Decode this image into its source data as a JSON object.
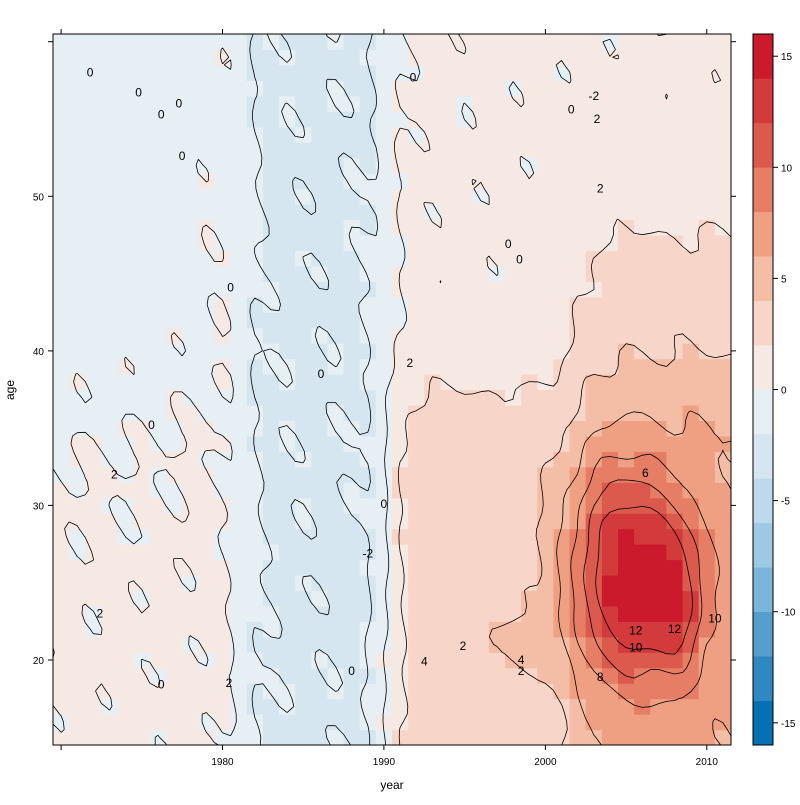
{
  "chart_data": {
    "type": "heatmap",
    "subtype": "levelplot-with-contours",
    "title": "",
    "xlabel": "year",
    "ylabel": "age",
    "xlim": [
      1969.5,
      2011.5
    ],
    "ylim": [
      14.5,
      60.5
    ],
    "x_ticks": [
      1980,
      1990,
      2000,
      2010
    ],
    "y_ticks": [
      20,
      30,
      40,
      50
    ],
    "x_tick_labels": [
      "1980",
      "1990",
      "2000",
      "2010"
    ],
    "y_tick_labels": [
      "20",
      "30",
      "40",
      "50"
    ],
    "colorkey": {
      "min": -16,
      "max": 16,
      "step": 2,
      "ticks": [
        -15,
        -10,
        -5,
        0,
        5,
        10,
        15
      ],
      "tick_labels": [
        "-15",
        "-10",
        "-5",
        "0",
        "5",
        "10",
        "15"
      ],
      "palette": {
        "-16": "#0571b0",
        "-14": "#2f88c0",
        "-12": "#559fce",
        "-10": "#7bb5da",
        "-8": "#9ec9e4",
        "-6": "#bdd9ec",
        "-4": "#d5e6f1",
        "-2": "#e6eff4",
        "0": "#f6e8e3",
        "2": "#f7d5c8",
        "4": "#f4bda6",
        "6": "#efa082",
        "8": "#e57e64",
        "10": "#dc5a4d",
        "12": "#d23a3c",
        "14": "#cb1a2c"
      }
    },
    "contour_labels": [
      {
        "text": "0",
        "x": 1971.8,
        "y": 58.0
      },
      {
        "text": "0",
        "x": 1974.8,
        "y": 56.7
      },
      {
        "text": "0",
        "x": 1976.2,
        "y": 55.3
      },
      {
        "text": "0",
        "x": 1977.3,
        "y": 56.0
      },
      {
        "text": "0",
        "x": 1977.5,
        "y": 52.6
      },
      {
        "text": "0",
        "x": 1980.5,
        "y": 44.1
      },
      {
        "text": "0",
        "x": 1975.6,
        "y": 35.2
      },
      {
        "text": "2",
        "x": 1973.3,
        "y": 32.0
      },
      {
        "text": "2",
        "x": 1972.4,
        "y": 23.0
      },
      {
        "text": "0",
        "x": 1976.2,
        "y": 18.4
      },
      {
        "text": "2",
        "x": 1980.4,
        "y": 18.5
      },
      {
        "text": "0",
        "x": 1986.1,
        "y": 38.5
      },
      {
        "text": "0",
        "x": 1988.0,
        "y": 19.3
      },
      {
        "text": "2",
        "x": 1991.6,
        "y": 39.2
      },
      {
        "text": "-2",
        "x": 1989.0,
        "y": 26.9
      },
      {
        "text": "0",
        "x": 1990.0,
        "y": 30.1
      },
      {
        "text": "0",
        "x": 1991.8,
        "y": 57.7
      },
      {
        "text": "0",
        "x": 1997.7,
        "y": 46.9
      },
      {
        "text": "0",
        "x": 1998.4,
        "y": 45.9
      },
      {
        "text": "0",
        "x": 2001.6,
        "y": 55.6
      },
      {
        "text": "2",
        "x": 2003.4,
        "y": 50.5
      },
      {
        "text": "6",
        "x": 2006.2,
        "y": 32.1
      },
      {
        "text": "4",
        "x": 1992.5,
        "y": 19.9
      },
      {
        "text": "2",
        "x": 1994.9,
        "y": 20.9
      },
      {
        "text": "4",
        "x": 1998.5,
        "y": 20.0
      },
      {
        "text": "2",
        "x": 1998.5,
        "y": 19.3
      },
      {
        "text": "8",
        "x": 2003.4,
        "y": 18.9
      },
      {
        "text": "10",
        "x": 2005.6,
        "y": 20.8
      },
      {
        "text": "12",
        "x": 2005.6,
        "y": 21.9
      },
      {
        "text": "12",
        "x": 2008.0,
        "y": 22.0
      },
      {
        "text": "10",
        "x": 2010.5,
        "y": 22.7
      },
      {
        "text": "-2",
        "x": 2003.0,
        "y": 56.5
      },
      {
        "text": "2",
        "x": 2003.2,
        "y": 55.0
      }
    ],
    "field_description": "Value of z over (year, age); mostly near 0, negative band around 1982-1990 (all ages), positive region after 1990 at ages below 38 and after 2001 at ages below 50, peak about +14 near year 2005, age 24."
  }
}
